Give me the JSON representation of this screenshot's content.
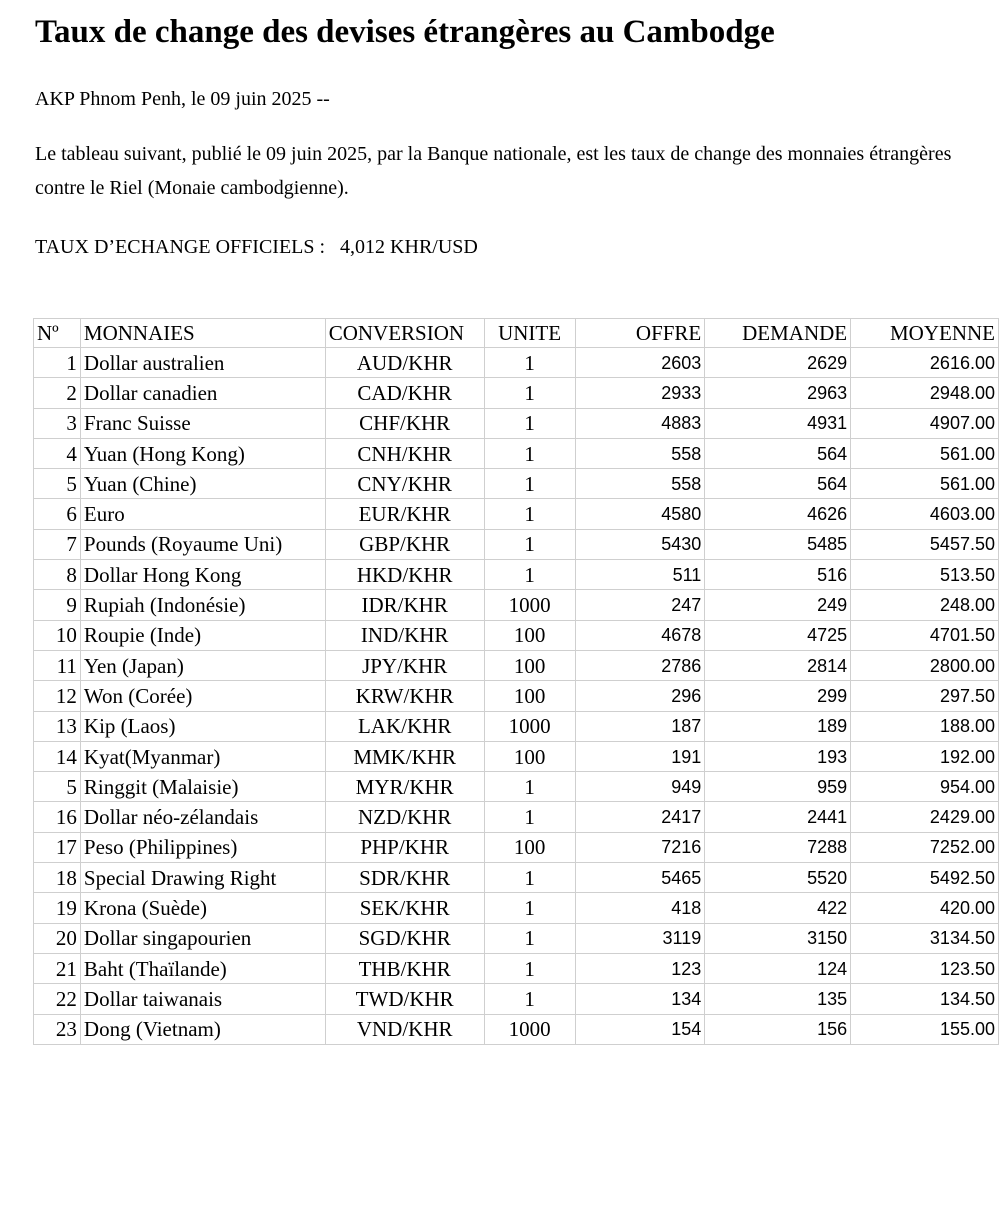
{
  "title": "Taux de change des devises étrangères au Cambodge",
  "dateline": "AKP Phnom Penh, le 09 juin 2025 --",
  "intro": "Le tableau suivant, publié  le 09 juin 2025, par la Banque nationale, est les taux de change des monnaies étrangères contre le Riel (Monaie cambodgienne).",
  "official_rate": "TAUX D’ECHANGE OFFICIELS :   4,012 KHR/USD",
  "headers": [
    "Nº",
    "MONNAIES",
    "CONVERSION",
    "UNITE",
    "OFFRE",
    "DEMANDE",
    "MOYENNE"
  ],
  "rows": [
    [
      "1",
      "Dollar australien",
      "AUD/KHR",
      "1",
      "2603",
      "2629",
      "2616.00"
    ],
    [
      "2",
      "Dollar canadien",
      "CAD/KHR",
      "1",
      "2933",
      "2963",
      "2948.00"
    ],
    [
      "3",
      "Franc Suisse",
      "CHF/KHR",
      "1",
      "4883",
      "4931",
      "4907.00"
    ],
    [
      "4",
      "Yuan (Hong Kong)",
      "CNH/KHR",
      "1",
      "558",
      "564",
      "561.00"
    ],
    [
      "5",
      "Yuan (Chine)",
      "CNY/KHR",
      "1",
      "558",
      "564",
      "561.00"
    ],
    [
      "6",
      "Euro",
      "EUR/KHR",
      "1",
      "4580",
      "4626",
      "4603.00"
    ],
    [
      "7",
      "Pounds (Royaume Uni)",
      "GBP/KHR",
      "1",
      "5430",
      "5485",
      "5457.50"
    ],
    [
      "8",
      "Dollar Hong Kong",
      "HKD/KHR",
      "1",
      "511",
      "516",
      "513.50"
    ],
    [
      "9",
      "Rupiah (Indonésie)",
      "IDR/KHR",
      "1000",
      "247",
      "249",
      "248.00"
    ],
    [
      "10",
      "Roupie (Inde)",
      "IND/KHR",
      "100",
      "4678",
      "4725",
      "4701.50"
    ],
    [
      "11",
      "Yen (Japan)",
      "JPY/KHR",
      "100",
      "2786",
      "2814",
      "2800.00"
    ],
    [
      "12",
      "Won (Corée)",
      "KRW/KHR",
      "100",
      "296",
      "299",
      "297.50"
    ],
    [
      "13",
      "Kip (Laos)",
      "LAK/KHR",
      "1000",
      "187",
      "189",
      "188.00"
    ],
    [
      "14",
      "Kyat(Myanmar)",
      "MMK/KHR",
      "100",
      "191",
      "193",
      "192.00"
    ],
    [
      "5",
      "Ringgit (Malaisie)",
      "MYR/KHR",
      "1",
      "949",
      "959",
      "954.00"
    ],
    [
      "16",
      "Dollar néo-zélandais",
      "NZD/KHR",
      "1",
      "2417",
      "2441",
      "2429.00"
    ],
    [
      "17",
      "Peso (Philippines)",
      "PHP/KHR",
      "100",
      "7216",
      "7288",
      "7252.00"
    ],
    [
      "18",
      "Special Drawing Right",
      "SDR/KHR",
      "1",
      "5465",
      "5520",
      "5492.50"
    ],
    [
      "19",
      "Krona (Suède)",
      "SEK/KHR",
      "1",
      "418",
      "422",
      "420.00"
    ],
    [
      "20",
      "Dollar singapourien",
      "SGD/KHR",
      "1",
      "3119",
      "3150",
      "3134.50"
    ],
    [
      "21",
      "Baht (Thaïlande)",
      "THB/KHR",
      "1",
      "123",
      "124",
      "123.50"
    ],
    [
      "22",
      "Dollar taiwanais",
      "TWD/KHR",
      "1",
      "134",
      "135",
      "134.50"
    ],
    [
      "23",
      "Dong (Vietnam)",
      "VND/KHR",
      "1000",
      "154",
      "156",
      "155.00"
    ]
  ]
}
